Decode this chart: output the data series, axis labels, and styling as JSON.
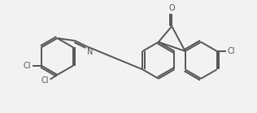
{
  "bg_color": "#f2f2f2",
  "line_color": "#555555",
  "line_width": 1.4,
  "text_color": "#555555",
  "font_size": 7.0,
  "xlim": [
    0,
    10
  ],
  "ylim": [
    0,
    4.4
  ]
}
